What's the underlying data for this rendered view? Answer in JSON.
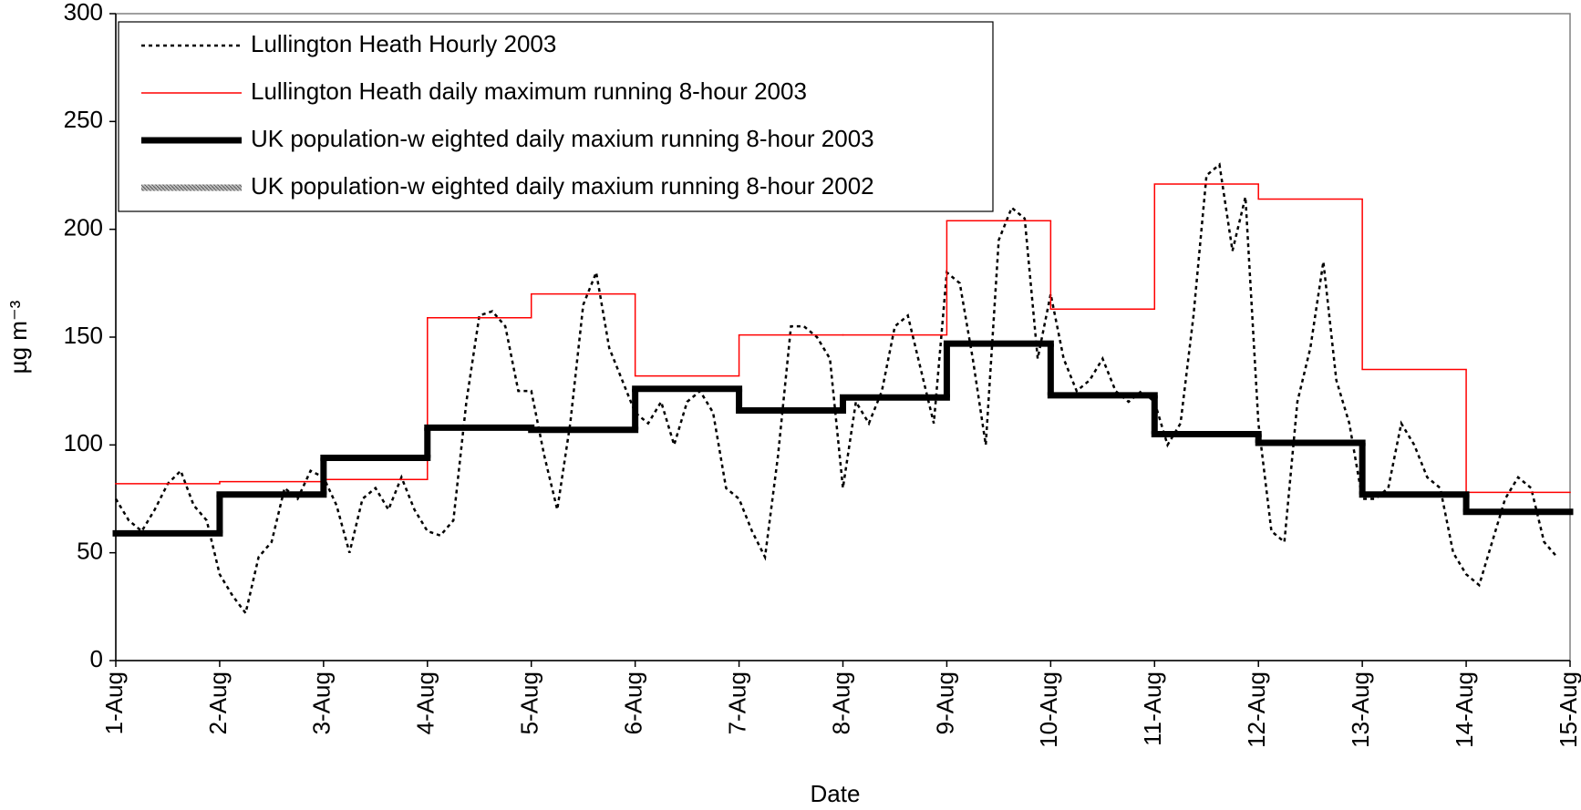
{
  "chart_data": {
    "type": "line",
    "xlabel": "Date",
    "ylabel": "µg m⁻³",
    "xlim": [
      0,
      14
    ],
    "ylim": [
      0,
      300
    ],
    "yticks": [
      0,
      50,
      100,
      150,
      200,
      250,
      300
    ],
    "xticks": [
      {
        "value": 0,
        "label": "1-Aug"
      },
      {
        "value": 1,
        "label": "2-Aug"
      },
      {
        "value": 2,
        "label": "3-Aug"
      },
      {
        "value": 3,
        "label": "4-Aug"
      },
      {
        "value": 4,
        "label": "5-Aug"
      },
      {
        "value": 5,
        "label": "6-Aug"
      },
      {
        "value": 6,
        "label": "7-Aug"
      },
      {
        "value": 7,
        "label": "8-Aug"
      },
      {
        "value": 8,
        "label": "9-Aug"
      },
      {
        "value": 9,
        "label": "10-Aug"
      },
      {
        "value": 10,
        "label": "11-Aug"
      },
      {
        "value": 11,
        "label": "12-Aug"
      },
      {
        "value": 12,
        "label": "13-Aug"
      },
      {
        "value": 13,
        "label": "14-Aug"
      },
      {
        "value": 14,
        "label": "15-Aug"
      }
    ],
    "legend": "upper left",
    "series": [
      {
        "name": "Lullington Heath Hourly 2003",
        "color": "#000000",
        "style": "dotted",
        "x": [
          0,
          0.125,
          0.25,
          0.375,
          0.5,
          0.625,
          0.75,
          0.875,
          1,
          1.125,
          1.25,
          1.375,
          1.5,
          1.625,
          1.75,
          1.875,
          2,
          2.125,
          2.25,
          2.375,
          2.5,
          2.625,
          2.75,
          2.875,
          3,
          3.125,
          3.25,
          3.375,
          3.5,
          3.625,
          3.75,
          3.875,
          4,
          4.125,
          4.25,
          4.375,
          4.5,
          4.625,
          4.75,
          4.875,
          5,
          5.125,
          5.25,
          5.375,
          5.5,
          5.625,
          5.75,
          5.875,
          6,
          6.125,
          6.25,
          6.375,
          6.5,
          6.625,
          6.75,
          6.875,
          7,
          7.125,
          7.25,
          7.375,
          7.5,
          7.625,
          7.75,
          7.875,
          8,
          8.125,
          8.25,
          8.375,
          8.5,
          8.625,
          8.75,
          8.875,
          9,
          9.125,
          9.25,
          9.375,
          9.5,
          9.625,
          9.75,
          9.875,
          10,
          10.125,
          10.25,
          10.375,
          10.5,
          10.625,
          10.75,
          10.875,
          11,
          11.125,
          11.25,
          11.375,
          11.5,
          11.625,
          11.75,
          11.875,
          12,
          12.125,
          12.25,
          12.375,
          12.5,
          12.625,
          12.75,
          12.875,
          13,
          13.125,
          13.25,
          13.375,
          13.5,
          13.625,
          13.75,
          13.875
        ],
        "values": [
          75,
          65,
          60,
          70,
          82,
          88,
          72,
          65,
          40,
          30,
          22,
          48,
          55,
          80,
          75,
          88,
          85,
          72,
          50,
          75,
          80,
          70,
          85,
          70,
          60,
          58,
          65,
          120,
          160,
          162,
          155,
          125,
          125,
          95,
          70,
          110,
          165,
          180,
          145,
          130,
          115,
          110,
          120,
          100,
          120,
          125,
          115,
          80,
          75,
          60,
          48,
          95,
          155,
          155,
          150,
          140,
          80,
          120,
          110,
          125,
          155,
          160,
          135,
          110,
          180,
          175,
          140,
          100,
          195,
          210,
          205,
          140,
          170,
          140,
          125,
          130,
          140,
          125,
          120,
          125,
          120,
          100,
          110,
          160,
          225,
          230,
          190,
          215,
          110,
          60,
          55,
          120,
          145,
          185,
          130,
          110,
          75,
          75,
          80,
          110,
          100,
          85,
          80,
          50,
          40,
          35,
          55,
          75,
          85,
          80,
          55,
          48
        ]
      },
      {
        "name": "Lullington Heath daily maximum running 8-hour 2003",
        "color": "#ff0000",
        "style": "step",
        "x": [
          0,
          1,
          2,
          3,
          4,
          5,
          6,
          7,
          8,
          9,
          10,
          11,
          12,
          13
        ],
        "values": [
          82,
          83,
          84,
          159,
          170,
          132,
          151,
          151,
          204,
          163,
          221,
          214,
          135,
          78
        ]
      },
      {
        "name": "UK population-w eighted daily maxium running 8-hour 2003",
        "color": "#000000",
        "style": "step-thick",
        "x": [
          0,
          1,
          2,
          3,
          4,
          5,
          6,
          7,
          8,
          9,
          10,
          11,
          12,
          13
        ],
        "values": [
          59,
          77,
          94,
          108,
          107,
          126,
          116,
          122,
          147,
          123,
          105,
          101,
          77,
          69
        ]
      },
      {
        "name": "UK population-w eighted daily maxium running 8-hour 2002",
        "color": "#888888",
        "style": "step-hatched",
        "x": [
          0,
          1,
          2,
          3,
          4,
          5,
          6,
          7,
          8,
          9,
          10,
          11,
          12,
          13
        ],
        "values": [
          null,
          null,
          null,
          null,
          null,
          null,
          null,
          null,
          null,
          null,
          null,
          null,
          null,
          null
        ]
      }
    ]
  }
}
